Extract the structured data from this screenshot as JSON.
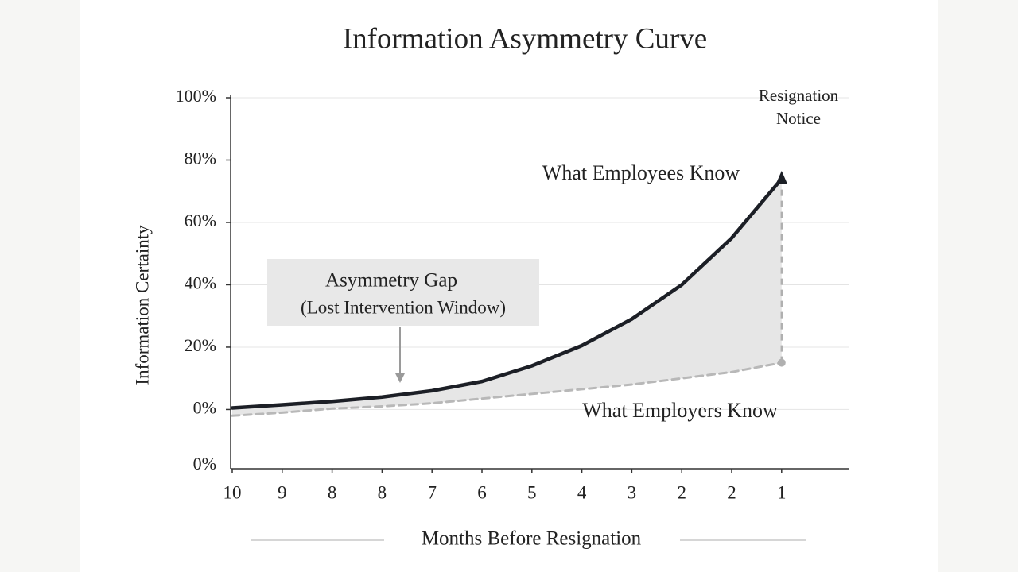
{
  "chart_data": {
    "type": "line",
    "title": "Information Asymmetry Curve",
    "x_label": "Months Before Resignation",
    "y_label": "Information Certainty",
    "categories": [
      "10",
      "9",
      "8",
      "8",
      "7",
      "6",
      "5",
      "4",
      "3",
      "2",
      "2",
      "1"
    ],
    "series": [
      {
        "name": "What Employees Know",
        "color": "#1c1f26",
        "style": "solid",
        "values": [
          0.5,
          1.5,
          2.6,
          4,
          6,
          9,
          14,
          20.5,
          29,
          40,
          55,
          74
        ]
      },
      {
        "name": "What Employers Know",
        "color": "#b8b8b8",
        "style": "dashed",
        "values": [
          -2,
          -1,
          0.3,
          1,
          2,
          3.5,
          5,
          6.5,
          8,
          10,
          12,
          15
        ]
      }
    ],
    "ylim": [
      -19,
      100
    ],
    "yticks": [
      {
        "value": 100,
        "label": "100%"
      },
      {
        "value": 80,
        "label": "80%"
      },
      {
        "value": 60,
        "label": "60%"
      },
      {
        "value": 40,
        "label": "40%"
      },
      {
        "value": 20,
        "label": "20%"
      },
      {
        "value": 0,
        "label": "0%"
      }
    ],
    "y_floor_label": "0%",
    "grid": true,
    "gap_fill": "#e6e6e6",
    "annotations": {
      "gap": [
        "Asymmetry Gap",
        "(Lost Intervention Window)"
      ],
      "resignation": [
        "Resignation",
        "Notice"
      ]
    }
  }
}
